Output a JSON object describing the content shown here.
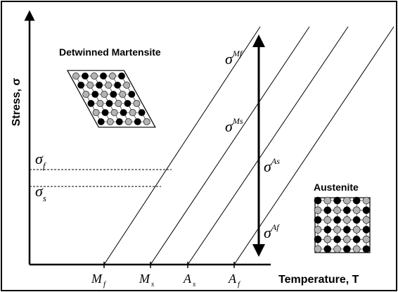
{
  "labels": {
    "y_axis": "Stress, σ",
    "x_axis": "Temperature, T",
    "detwinned": "Detwinned Martensite",
    "austenite": "Austenite"
  },
  "stress_marks": {
    "sigma_f": {
      "base": "σ",
      "sub": "f"
    },
    "sigma_s": {
      "base": "σ",
      "sub": "s"
    }
  },
  "critical_stresses": [
    {
      "base": "σ",
      "sup": "Mf"
    },
    {
      "base": "σ",
      "sup": "Ms"
    },
    {
      "base": "σ",
      "sup": "As"
    },
    {
      "base": "σ",
      "sup": "Af"
    }
  ],
  "temperature_ticks": [
    {
      "base": "M",
      "sub": "f"
    },
    {
      "base": "M",
      "sub": "s"
    },
    {
      "base": "A",
      "sub": "s"
    },
    {
      "base": "A",
      "sub": "f"
    }
  ],
  "colors": {
    "line": "#000000",
    "atom_black": "#000000",
    "atom_gray": "#b3b3b3",
    "atom_white": "#ffffff",
    "background": "#ffffff"
  }
}
